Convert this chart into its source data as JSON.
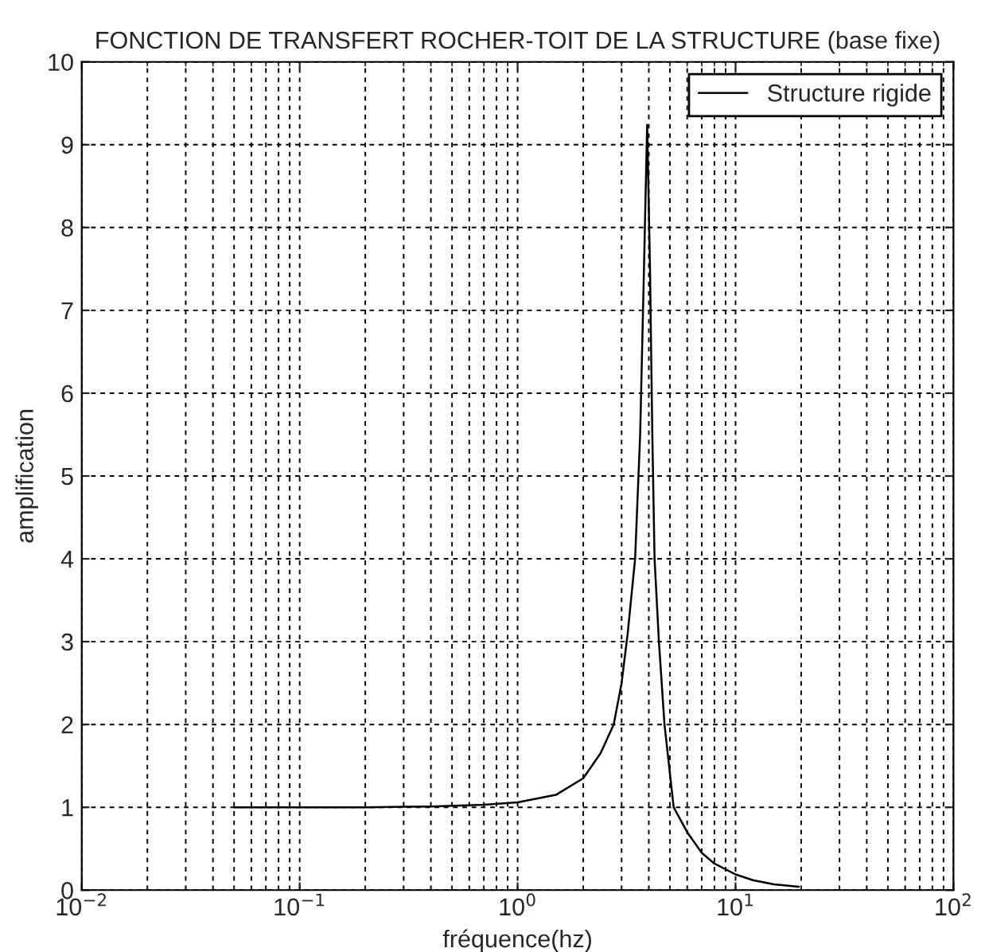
{
  "chart_data": {
    "type": "line",
    "title": "FONCTION DE TRANSFERT ROCHER-TOIT DE LA STRUCTURE (base fixe)",
    "xlabel": "fréquence(hz)",
    "ylabel": "amplification",
    "x": [
      0.05,
      0.2,
      0.4,
      0.7,
      1,
      1.5,
      2,
      2.4,
      2.76,
      3.0,
      3.2,
      3.46,
      3.65,
      3.8,
      3.93,
      4.05,
      4.15,
      4.25,
      4.45,
      4.72,
      5.2,
      6,
      7,
      8,
      10,
      12,
      15,
      19.5
    ],
    "series": [
      {
        "name": "Structure rigide",
        "color": "#000000",
        "values": [
          1.0,
          1.0,
          1.01,
          1.03,
          1.06,
          1.15,
          1.35,
          1.65,
          2.0,
          2.5,
          3.1,
          4.0,
          5.5,
          7.5,
          9.24,
          7.5,
          5.5,
          4.0,
          3.0,
          2.0,
          1.0,
          0.7,
          0.45,
          0.32,
          0.19,
          0.12,
          0.07,
          0.04
        ]
      }
    ],
    "log": "x",
    "xlim": [
      0.01,
      100
    ],
    "xticks": [
      {
        "value": 0.01,
        "label": "10$^{−2}$"
      },
      {
        "value": 0.1,
        "label": "10$^{−1}$"
      },
      {
        "value": 1,
        "label": "10$^{0}$"
      },
      {
        "value": 10,
        "label": "10$^{1}$"
      },
      {
        "value": 100,
        "label": "10$^{2}$"
      }
    ],
    "ylim": [
      0,
      10
    ],
    "yticks": [
      0,
      1,
      2,
      3,
      4,
      5,
      6,
      7,
      8,
      9,
      10
    ],
    "grid": true,
    "legend": "top right",
    "marker": "none",
    "line_style": "solid"
  }
}
